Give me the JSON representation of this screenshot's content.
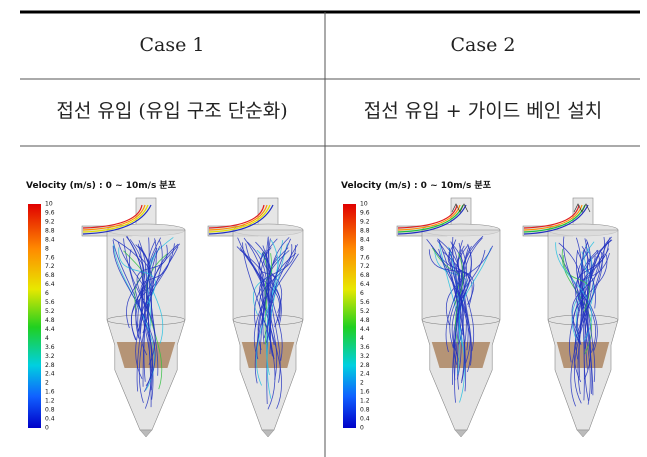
{
  "table": {
    "header": [
      "Case 1",
      "Case 2"
    ],
    "rows": [
      [
        "접선 유입 (유입 구조 단순화)",
        "접선 유입 + 가이드 베인 설치"
      ]
    ],
    "panels": [
      {
        "title": "Velocity (m/s) : 0 ~ 10m/s 분포",
        "legend_ticks": [
          10,
          9.6,
          9.2,
          8.8,
          8.4,
          8,
          7.6,
          7.2,
          6.8,
          6.4,
          6,
          5.6,
          5.2,
          4.8,
          4.4,
          4,
          3.6,
          3.2,
          2.8,
          2.4,
          2,
          1.6,
          1.2,
          0.8,
          0.4,
          0
        ]
      },
      {
        "title": "Velocity (m/s) : 0 ~ 10m/s 분포",
        "legend_ticks": [
          10,
          9.6,
          9.2,
          8.8,
          8.4,
          8,
          7.6,
          7.2,
          6.8,
          6.4,
          6,
          5.6,
          5.2,
          4.8,
          4.4,
          4,
          3.6,
          3.2,
          2.8,
          2.4,
          2,
          1.6,
          1.2,
          0.8,
          0.4,
          0
        ]
      }
    ]
  }
}
